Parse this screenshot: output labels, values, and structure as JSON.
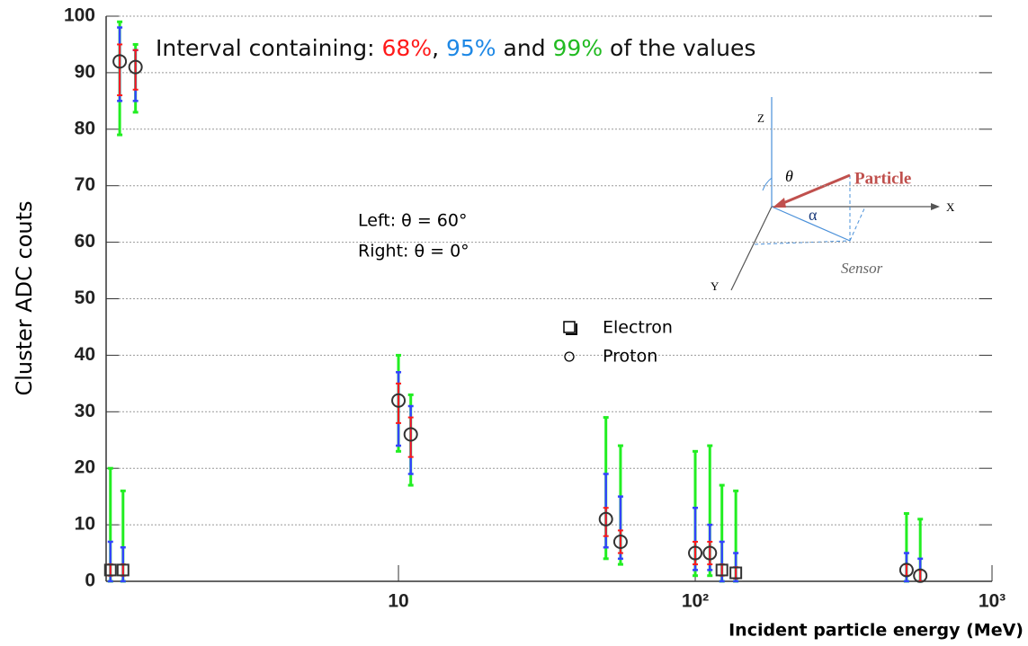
{
  "chart_data": {
    "type": "errorbar",
    "title_parts": [
      {
        "text": "Interval containing: ",
        "color": "#111111"
      },
      {
        "text": "68%",
        "color": "#ff1a1a"
      },
      {
        "text": ", ",
        "color": "#111111"
      },
      {
        "text": "95%",
        "color": "#1e88e5"
      },
      {
        "text": " and ",
        "color": "#111111"
      },
      {
        "text": "99%",
        "color": "#22bb22"
      },
      {
        "text": " of the values",
        "color": "#111111"
      }
    ],
    "x_label": "Incident particle energy (MeV)",
    "y_label": "Cluster ADC couts",
    "xscale": "log",
    "xlim": [
      1.035,
      1000
    ],
    "ylim": [
      0,
      100
    ],
    "xticks": [
      10,
      {
        "value": 100,
        "label": "10²"
      },
      {
        "value": 1000,
        "label": "10³"
      }
    ],
    "yticks": [
      0,
      10,
      20,
      30,
      40,
      50,
      60,
      70,
      80,
      90,
      100
    ],
    "grid": true,
    "interval_colors": {
      "ci99": "#22ee22",
      "ci95": "#3344ff",
      "ci68": "#ff1a1a"
    },
    "series": [
      {
        "name": "Electron",
        "marker": "square",
        "color": "#333333",
        "x": [
          1.07,
          1.18,
          123,
          137
        ],
        "values": [
          2,
          2,
          2,
          1.5
        ],
        "ci68": [
          [
            1,
            3
          ],
          [
            1,
            3
          ],
          [
            1,
            3
          ],
          [
            0.5,
            2.5
          ]
        ],
        "ci95": [
          [
            0,
            7
          ],
          [
            0,
            6
          ],
          [
            0,
            7
          ],
          [
            0,
            5
          ]
        ],
        "ci99": [
          [
            0,
            20
          ],
          [
            0,
            16
          ],
          [
            0,
            17
          ],
          [
            0,
            16
          ]
        ]
      },
      {
        "name": "Proton",
        "marker": "circle",
        "color": "#333333",
        "x": [
          1.15,
          1.3,
          10,
          11,
          50,
          56,
          100,
          112,
          515,
          573
        ],
        "values": [
          92,
          91,
          32,
          26,
          11,
          7,
          5,
          5,
          2,
          1
        ],
        "ci68": [
          [
            86,
            95
          ],
          [
            87,
            94
          ],
          [
            28,
            35
          ],
          [
            22,
            29
          ],
          [
            8,
            13
          ],
          [
            5,
            9
          ],
          [
            3,
            7
          ],
          [
            3,
            7
          ],
          [
            1,
            3
          ],
          [
            0,
            2
          ]
        ],
        "ci95": [
          [
            85,
            98
          ],
          [
            85,
            94
          ],
          [
            24,
            37
          ],
          [
            19,
            31
          ],
          [
            6,
            19
          ],
          [
            4,
            15
          ],
          [
            2,
            13
          ],
          [
            2,
            10
          ],
          [
            0,
            5
          ],
          [
            0,
            4
          ]
        ],
        "ci99": [
          [
            79,
            99
          ],
          [
            83,
            95
          ],
          [
            23,
            40
          ],
          [
            17,
            33
          ],
          [
            4,
            29
          ],
          [
            3,
            24
          ],
          [
            1,
            23
          ],
          [
            1,
            24
          ],
          [
            0,
            12
          ],
          [
            0,
            11
          ]
        ]
      }
    ],
    "annotations": [
      "Left: θ = 60°",
      "Right: θ = 0°"
    ],
    "inset": {
      "z": "Z",
      "x": "X",
      "y": "Y",
      "theta": "θ",
      "alpha": "α",
      "particle": "Particle",
      "sensor": "Sensor"
    }
  }
}
